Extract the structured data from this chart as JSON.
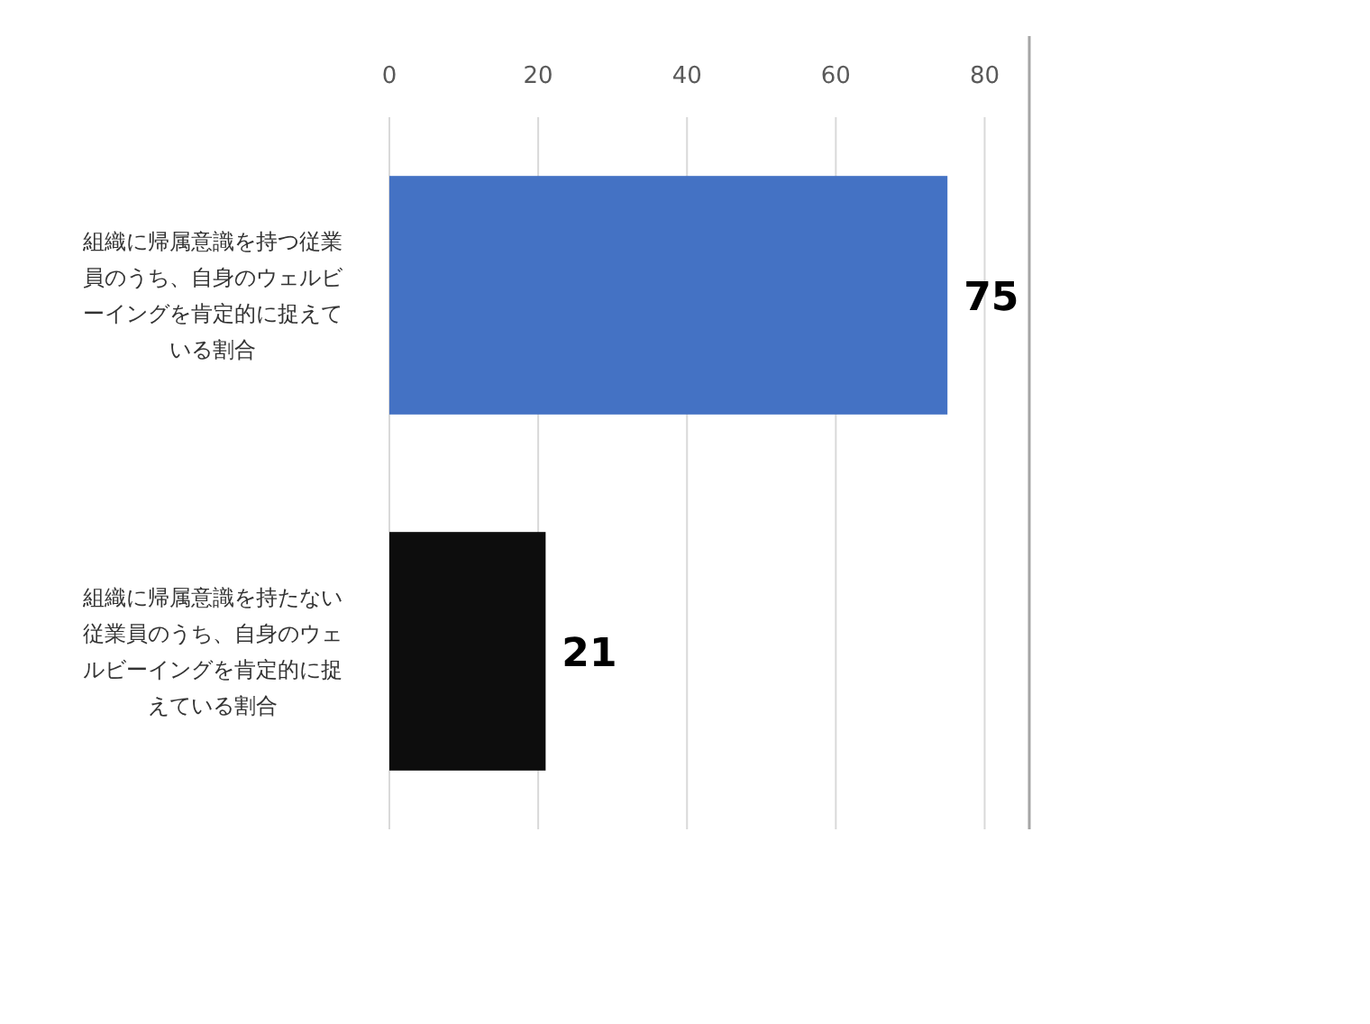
{
  "chart_data": {
    "type": "bar",
    "orientation": "horizontal",
    "categories": [
      "組織に帰属意識を持つ従業員のうち、自身のウェルビーイングを肯定的に捉えている割合",
      "組織に帰属意識を持たない従業員のうち、自身のウェルビーイングを肯定的に捉えている割合"
    ],
    "values": [
      75,
      21
    ],
    "colors": [
      "#4472c4",
      "#0d0d0d"
    ],
    "xlim": [
      0,
      86
    ],
    "xticks": [
      0,
      20,
      40,
      60,
      80
    ],
    "grid": "x",
    "data_labels": true
  }
}
